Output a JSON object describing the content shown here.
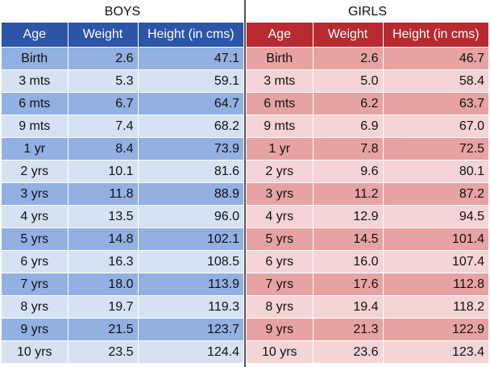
{
  "boys": {
    "title": "BOYS",
    "headers": [
      "Age",
      "Weight",
      "Height (in cms)"
    ],
    "rows": [
      [
        "Birth",
        "2.6",
        "47.1"
      ],
      [
        "3 mts",
        "5.3",
        "59.1"
      ],
      [
        "6 mts",
        "6.7",
        "64.7"
      ],
      [
        "9 mts",
        "7.4",
        "68.2"
      ],
      [
        "1 yr",
        "8.4",
        "73.9"
      ],
      [
        "2 yrs",
        "10.1",
        "81.6"
      ],
      [
        "3 yrs",
        "11.8",
        "88.9"
      ],
      [
        "4 yrs",
        "13.5",
        "96.0"
      ],
      [
        "5 yrs",
        "14.8",
        "102.1"
      ],
      [
        "6 yrs",
        "16.3",
        "108.5"
      ],
      [
        "7 yrs",
        "18.0",
        "113.9"
      ],
      [
        "8 yrs",
        "19.7",
        "119.3"
      ],
      [
        "9 yrs",
        "21.5",
        "123.7"
      ],
      [
        "10 yrs",
        "23.5",
        "124.4"
      ]
    ]
  },
  "girls": {
    "title": "GIRLS",
    "headers": [
      "Age",
      "Weight",
      "Height (in cms)"
    ],
    "rows": [
      [
        "Birth",
        "2.6",
        "46.7"
      ],
      [
        "3 mts",
        "5.0",
        "58.4"
      ],
      [
        "6 mts",
        "6.2",
        "63.7"
      ],
      [
        "9 mts",
        "6.9",
        "67.0"
      ],
      [
        "1 yr",
        "7.8",
        "72.5"
      ],
      [
        "2 yrs",
        "9.6",
        "80.1"
      ],
      [
        "3 yrs",
        "11.2",
        "87.2"
      ],
      [
        "4 yrs",
        "12.9",
        "94.5"
      ],
      [
        "5 yrs",
        "14.5",
        "101.4"
      ],
      [
        "6 yrs",
        "16.0",
        "107.4"
      ],
      [
        "7 yrs",
        "17.6",
        "112.8"
      ],
      [
        "8 yrs",
        "19.4",
        "118.2"
      ],
      [
        "9 yrs",
        "21.3",
        "122.9"
      ],
      [
        "10 yrs",
        "23.6",
        "123.4"
      ]
    ]
  },
  "colors": {
    "boys_header": "#2c55a8",
    "boys_row_dark": "#92b0e2",
    "boys_row_light": "#d6e2f4",
    "girls_header": "#b82a30",
    "girls_row_dark": "#e7a3a3",
    "girls_row_light": "#f4d4d4"
  }
}
